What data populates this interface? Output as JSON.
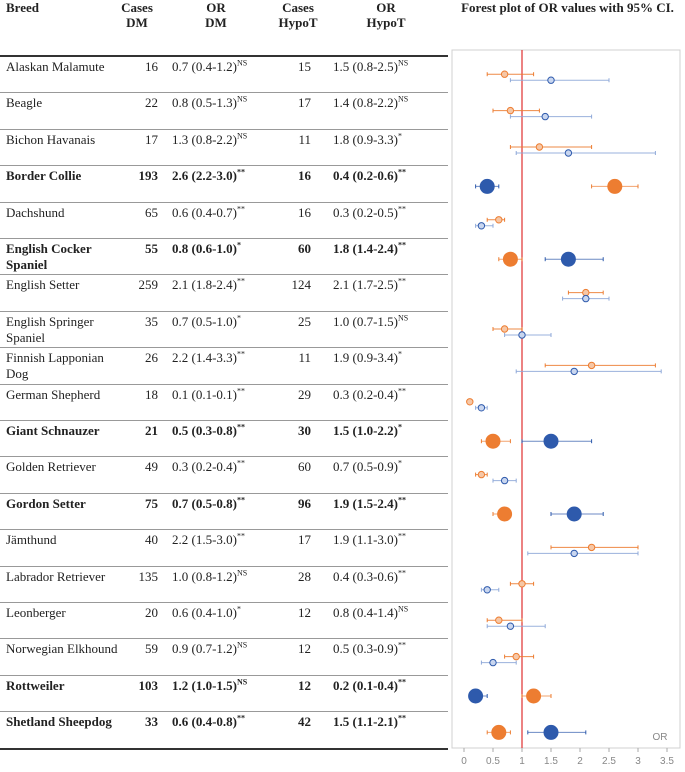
{
  "headers": {
    "breed": "Breed",
    "cases_dm": [
      "Cases",
      "DM"
    ],
    "or_dm": [
      "OR",
      "DM"
    ],
    "cases_hypot": [
      "Cases",
      "HypoT"
    ],
    "or_hypot": [
      "OR",
      "HypoT"
    ],
    "plot_title": "Forest plot of OR values with 95% CI."
  },
  "colors": {
    "dm": "#ed7d31",
    "hypot": "#2e5aac",
    "hypot_light": "#8fa9d9",
    "ref_line": "#e03030"
  },
  "rows": [
    {
      "breed": "Alaskan Malamute",
      "bold": false,
      "cases_dm": "16",
      "or_dm": "0.7 (0.4-1.2)",
      "sig_dm": "NS",
      "cases_hypot": "15",
      "or_hypot": "1.5 (0.8-2.5)",
      "sig_hypot": "NS"
    },
    {
      "breed": "Beagle",
      "bold": false,
      "cases_dm": "22",
      "or_dm": "0.8 (0.5-1.3)",
      "sig_dm": "NS",
      "cases_hypot": "17",
      "or_hypot": "1.4 (0.8-2.2)",
      "sig_hypot": "NS"
    },
    {
      "breed": "Bichon Havanais",
      "bold": false,
      "cases_dm": "17",
      "or_dm": "1.3 (0.8-2.2)",
      "sig_dm": "NS",
      "cases_hypot": "11",
      "or_hypot": "1.8 (0.9-3.3)",
      "sig_hypot": "*"
    },
    {
      "breed": "Border Collie",
      "bold": true,
      "cases_dm": "193",
      "or_dm": "2.6 (2.2-3.0)",
      "sig_dm": "**",
      "cases_hypot": "16",
      "or_hypot": "0.4 (0.2-0.6)",
      "sig_hypot": "**"
    },
    {
      "breed": "Dachshund",
      "bold": false,
      "cases_dm": "65",
      "or_dm": "0.6 (0.4-0.7)",
      "sig_dm": "**",
      "cases_hypot": "16",
      "or_hypot": "0.3 (0.2-0.5)",
      "sig_hypot": "**"
    },
    {
      "breed": "English Cocker Spaniel",
      "bold": true,
      "cases_dm": "55",
      "or_dm": "0.8 (0.6-1.0)",
      "sig_dm": "*",
      "cases_hypot": "60",
      "or_hypot": "1.8 (1.4-2.4)",
      "sig_hypot": "**"
    },
    {
      "breed": "English Setter",
      "bold": false,
      "cases_dm": "259",
      "or_dm": "2.1 (1.8-2.4)",
      "sig_dm": "**",
      "cases_hypot": "124",
      "or_hypot": "2.1 (1.7-2.5)",
      "sig_hypot": "**"
    },
    {
      "breed": "English Springer Spaniel",
      "bold": false,
      "cases_dm": "35",
      "or_dm": "0.7 (0.5-1.0)",
      "sig_dm": "*",
      "cases_hypot": "25",
      "or_hypot": "1.0 (0.7-1.5)",
      "sig_hypot": "NS"
    },
    {
      "breed": "Finnish Lapponian Dog",
      "bold": false,
      "cases_dm": "26",
      "or_dm": "2.2 (1.4-3.3)",
      "sig_dm": "**",
      "cases_hypot": "11",
      "or_hypot": "1.9 (0.9-3.4)",
      "sig_hypot": "*"
    },
    {
      "breed": "German Shepherd",
      "bold": false,
      "cases_dm": "18",
      "or_dm": "0.1 (0.1-0.1)",
      "sig_dm": "**",
      "cases_hypot": "29",
      "or_hypot": "0.3 (0.2-0.4)",
      "sig_hypot": "**"
    },
    {
      "breed": "Giant Schnauzer",
      "bold": true,
      "cases_dm": "21",
      "or_dm": "0.5 (0.3-0.8)",
      "sig_dm": "**",
      "cases_hypot": "30",
      "or_hypot": "1.5 (1.0-2.2)",
      "sig_hypot": "*"
    },
    {
      "breed": "Golden Retriever",
      "bold": false,
      "cases_dm": "49",
      "or_dm": "0.3 (0.2-0.4)",
      "sig_dm": "**",
      "cases_hypot": "60",
      "or_hypot": "0.7 (0.5-0.9)",
      "sig_hypot": "*"
    },
    {
      "breed": "Gordon Setter",
      "bold": true,
      "cases_dm": "75",
      "or_dm": "0.7 (0.5-0.8)",
      "sig_dm": "**",
      "cases_hypot": "96",
      "or_hypot": "1.9 (1.5-2.4)",
      "sig_hypot": "**"
    },
    {
      "breed": "Jämthund",
      "bold": false,
      "cases_dm": "40",
      "or_dm": "2.2 (1.5-3.0)",
      "sig_dm": "**",
      "cases_hypot": "17",
      "or_hypot": "1.9 (1.1-3.0)",
      "sig_hypot": "**"
    },
    {
      "breed": "Labrador Retriever",
      "bold": false,
      "cases_dm": "135",
      "or_dm": "1.0 (0.8-1.2)",
      "sig_dm": "NS",
      "cases_hypot": "28",
      "or_hypot": "0.4 (0.3-0.6)",
      "sig_hypot": "**"
    },
    {
      "breed": "Leonberger",
      "bold": false,
      "cases_dm": "20",
      "or_dm": "0.6 (0.4-1.0)",
      "sig_dm": "*",
      "cases_hypot": "12",
      "or_hypot": "0.8 (0.4-1.4)",
      "sig_hypot": "NS"
    },
    {
      "breed": "Norwegian Elkhound",
      "bold": false,
      "cases_dm": "59",
      "or_dm": "0.9 (0.7-1.2)",
      "sig_dm": "NS",
      "cases_hypot": "12",
      "or_hypot": "0.5 (0.3-0.9)",
      "sig_hypot": "**"
    },
    {
      "breed": "Rottweiler",
      "bold": true,
      "cases_dm": "103",
      "or_dm": "1.2 (1.0-1.5)",
      "sig_dm": "NS",
      "cases_hypot": "12",
      "or_hypot": "0.2 (0.1-0.4)",
      "sig_hypot": "**"
    },
    {
      "breed": "Shetland Sheepdog",
      "bold": true,
      "cases_dm": "33",
      "or_dm": "0.6 (0.4-0.8)",
      "sig_dm": "**",
      "cases_hypot": "42",
      "or_hypot": "1.5 (1.1-2.1)",
      "sig_hypot": "**"
    }
  ],
  "chart_data": {
    "type": "scatter",
    "title": "Forest plot of OR values with 95% CI.",
    "xlabel": "OR",
    "xlim": [
      0,
      3.5
    ],
    "x_ticks": [
      "0",
      "0.5",
      "1",
      "1.5",
      "2",
      "2.5",
      "3",
      "3.5"
    ],
    "reference_line": 1,
    "grid": false,
    "series": [
      {
        "color": "#ed7d31",
        "points": [
          {
            "or": 0.7,
            "lo": 0.4,
            "hi": 1.2
          },
          {
            "or": 0.8,
            "lo": 0.5,
            "hi": 1.3
          },
          {
            "or": 1.3,
            "lo": 0.8,
            "hi": 2.2
          },
          {
            "or": 2.6,
            "lo": 2.2,
            "hi": 3.0
          },
          {
            "or": 0.6,
            "lo": 0.4,
            "hi": 0.7
          },
          {
            "or": 0.8,
            "lo": 0.6,
            "hi": 1.0
          },
          {
            "or": 2.1,
            "lo": 1.8,
            "hi": 2.4
          },
          {
            "or": 0.7,
            "lo": 0.5,
            "hi": 1.0
          },
          {
            "or": 2.2,
            "lo": 1.4,
            "hi": 3.3
          },
          {
            "or": 0.1,
            "lo": 0.1,
            "hi": 0.1
          },
          {
            "or": 0.5,
            "lo": 0.3,
            "hi": 0.8
          },
          {
            "or": 0.3,
            "lo": 0.2,
            "hi": 0.4
          },
          {
            "or": 0.7,
            "lo": 0.5,
            "hi": 0.8
          },
          {
            "or": 2.2,
            "lo": 1.5,
            "hi": 3.0
          },
          {
            "or": 1.0,
            "lo": 0.8,
            "hi": 1.2
          },
          {
            "or": 0.6,
            "lo": 0.4,
            "hi": 1.0
          },
          {
            "or": 0.9,
            "lo": 0.7,
            "hi": 1.2
          },
          {
            "or": 1.2,
            "lo": 1.0,
            "hi": 1.5
          },
          {
            "or": 0.6,
            "lo": 0.4,
            "hi": 0.8
          }
        ]
      },
      {
        "color": "#2e5aac",
        "points": [
          {
            "or": 1.5,
            "lo": 0.8,
            "hi": 2.5
          },
          {
            "or": 1.4,
            "lo": 0.8,
            "hi": 2.2
          },
          {
            "or": 1.8,
            "lo": 0.9,
            "hi": 3.3
          },
          {
            "or": 0.4,
            "lo": 0.2,
            "hi": 0.6
          },
          {
            "or": 0.3,
            "lo": 0.2,
            "hi": 0.5
          },
          {
            "or": 1.8,
            "lo": 1.4,
            "hi": 2.4
          },
          {
            "or": 2.1,
            "lo": 1.7,
            "hi": 2.5
          },
          {
            "or": 1.0,
            "lo": 0.7,
            "hi": 1.5
          },
          {
            "or": 1.9,
            "lo": 0.9,
            "hi": 3.4
          },
          {
            "or": 0.3,
            "lo": 0.2,
            "hi": 0.4
          },
          {
            "or": 1.5,
            "lo": 1.0,
            "hi": 2.2
          },
          {
            "or": 0.7,
            "lo": 0.5,
            "hi": 0.9
          },
          {
            "or": 1.9,
            "lo": 1.5,
            "hi": 2.4
          },
          {
            "or": 1.9,
            "lo": 1.1,
            "hi": 3.0
          },
          {
            "or": 0.4,
            "lo": 0.3,
            "hi": 0.6
          },
          {
            "or": 0.8,
            "lo": 0.4,
            "hi": 1.4
          },
          {
            "or": 0.5,
            "lo": 0.3,
            "hi": 0.9
          },
          {
            "or": 0.2,
            "lo": 0.1,
            "hi": 0.4
          },
          {
            "or": 1.5,
            "lo": 1.1,
            "hi": 2.1
          }
        ]
      }
    ]
  }
}
